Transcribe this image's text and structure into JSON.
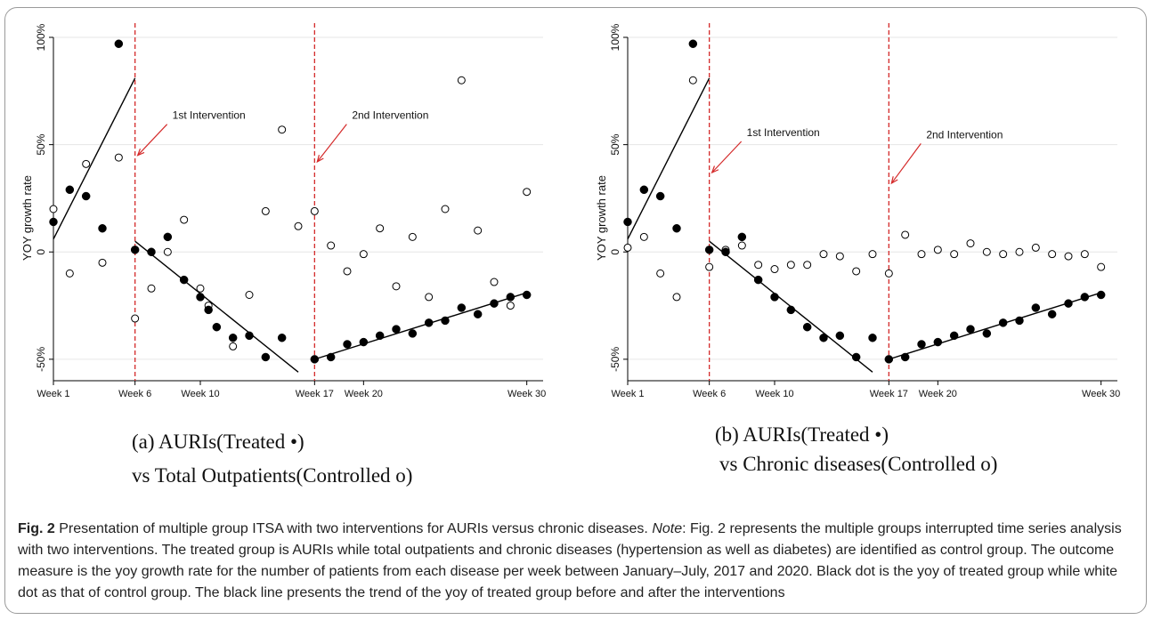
{
  "subtitles": [
    {
      "line1": "(a)   AURIs(Treated •)",
      "line2": "vs Total Outpatients(Controlled o)"
    },
    {
      "line1": "(b)   AURIs(Treated •)",
      "line2": "vs Chronic diseases(Controlled o)"
    }
  ],
  "caption": {
    "fig_label": "Fig. 2",
    "title": "Presentation of multiple group ITSA with two interventions for AURIs versus chronic diseases.",
    "note_label": "Note",
    "note_text": ": Fig. 2 represents the multiple groups interrupted time series analysis with two interventions. The treated group is AURIs while total outpatients and chronic diseases (hypertension as well as diabetes) are identified as control group. The outcome measure is the yoy growth rate for the number of patients from each disease per week between January–July, 2017 and 2020. Black dot is the yoy of treated group while white dot as that of control group. The black line presents the trend of the yoy of treated group before and after the interventions"
  },
  "colors": {
    "intervention": "#d42a2a",
    "marker": "#000000",
    "grid": "#e6e6e6"
  },
  "chart_data": [
    {
      "type": "scatter",
      "ylabel": "YOY growth rate",
      "xlim": [
        1,
        31
      ],
      "ylim": [
        -60,
        100
      ],
      "yticks": [
        {
          "v": 100,
          "label": "100%"
        },
        {
          "v": 50,
          "label": "50%"
        },
        {
          "v": 0,
          "label": "0"
        },
        {
          "v": -50,
          "label": "-50%"
        }
      ],
      "xticks": [
        {
          "v": 1,
          "label": "Week 1"
        },
        {
          "v": 6,
          "label": "Week 6"
        },
        {
          "v": 10,
          "label": "Week 10"
        },
        {
          "v": 17,
          "label": "Week 17"
        },
        {
          "v": 20,
          "label": "Week 20"
        },
        {
          "v": 30,
          "label": "Week 30"
        }
      ],
      "interventions": [
        {
          "week": 6,
          "label": "1st Intervention",
          "label_y": 62,
          "arrow_y": 45
        },
        {
          "week": 17,
          "label": "2nd Intervention",
          "label_y": 62,
          "arrow_y": 42
        }
      ],
      "treated": [
        [
          1,
          14
        ],
        [
          2,
          29
        ],
        [
          3,
          26
        ],
        [
          4,
          11
        ],
        [
          5,
          97
        ],
        [
          6,
          1
        ],
        [
          7,
          0
        ],
        [
          8,
          7
        ],
        [
          9,
          -13
        ],
        [
          10,
          -21
        ],
        [
          10.5,
          -27
        ],
        [
          11,
          -35
        ],
        [
          12,
          -40
        ],
        [
          13,
          -39
        ],
        [
          14,
          -49
        ],
        [
          15,
          -40
        ],
        [
          17,
          -50
        ],
        [
          18,
          -49
        ],
        [
          19,
          -43
        ],
        [
          20,
          -42
        ],
        [
          21,
          -39
        ],
        [
          22,
          -36
        ],
        [
          23,
          -38
        ],
        [
          24,
          -33
        ],
        [
          25,
          -32
        ],
        [
          26,
          -26
        ],
        [
          27,
          -29
        ],
        [
          28,
          -24
        ],
        [
          29,
          -21
        ],
        [
          30,
          -20
        ]
      ],
      "control": [
        [
          1,
          20
        ],
        [
          2,
          -10
        ],
        [
          3,
          41
        ],
        [
          4,
          -5
        ],
        [
          5,
          44
        ],
        [
          6,
          -31
        ],
        [
          7,
          -17
        ],
        [
          8,
          0
        ],
        [
          9,
          15
        ],
        [
          10,
          -17
        ],
        [
          10.5,
          -25
        ],
        [
          12,
          -44
        ],
        [
          13,
          -20
        ],
        [
          14,
          19
        ],
        [
          15,
          57
        ],
        [
          16,
          12
        ],
        [
          17,
          19
        ],
        [
          18,
          3
        ],
        [
          19,
          -9
        ],
        [
          20,
          -1
        ],
        [
          21,
          11
        ],
        [
          22,
          -16
        ],
        [
          23,
          7
        ],
        [
          24,
          -21
        ],
        [
          25,
          20
        ],
        [
          26,
          80
        ],
        [
          27,
          10
        ],
        [
          28,
          -14
        ],
        [
          29,
          -25
        ],
        [
          30,
          28
        ]
      ],
      "trend_lines": [
        {
          "x": [
            1,
            6
          ],
          "y": [
            6,
            81
          ]
        },
        {
          "x": [
            6,
            16
          ],
          "y": [
            5,
            -56
          ]
        },
        {
          "x": [
            17,
            30
          ],
          "y": [
            -50,
            -19
          ]
        }
      ]
    },
    {
      "type": "scatter",
      "ylabel": "YOY growth rate",
      "xlim": [
        1,
        31
      ],
      "ylim": [
        -60,
        100
      ],
      "yticks": [
        {
          "v": 100,
          "label": "100%"
        },
        {
          "v": 50,
          "label": "50%"
        },
        {
          "v": 0,
          "label": "0"
        },
        {
          "v": -50,
          "label": "-50%"
        }
      ],
      "xticks": [
        {
          "v": 1,
          "label": "Week 1"
        },
        {
          "v": 6,
          "label": "Week 6"
        },
        {
          "v": 10,
          "label": "Week 10"
        },
        {
          "v": 17,
          "label": "Week 17"
        },
        {
          "v": 20,
          "label": "Week 20"
        },
        {
          "v": 30,
          "label": "Week 30"
        }
      ],
      "interventions": [
        {
          "week": 6,
          "label": "1st Intervention",
          "label_y": 54,
          "arrow_y": 37
        },
        {
          "week": 17,
          "label": "2nd Intervention",
          "label_y": 53,
          "arrow_y": 32
        }
      ],
      "treated": [
        [
          1,
          14
        ],
        [
          2,
          29
        ],
        [
          3,
          26
        ],
        [
          4,
          11
        ],
        [
          5,
          97
        ],
        [
          6,
          1
        ],
        [
          7,
          0
        ],
        [
          8,
          7
        ],
        [
          9,
          -13
        ],
        [
          10,
          -21
        ],
        [
          11,
          -27
        ],
        [
          12,
          -35
        ],
        [
          13,
          -40
        ],
        [
          14,
          -39
        ],
        [
          15,
          -49
        ],
        [
          16,
          -40
        ],
        [
          17,
          -50
        ],
        [
          18,
          -49
        ],
        [
          19,
          -43
        ],
        [
          20,
          -42
        ],
        [
          21,
          -39
        ],
        [
          22,
          -36
        ],
        [
          23,
          -38
        ],
        [
          24,
          -33
        ],
        [
          25,
          -32
        ],
        [
          26,
          -26
        ],
        [
          27,
          -29
        ],
        [
          28,
          -24
        ],
        [
          29,
          -21
        ],
        [
          30,
          -20
        ]
      ],
      "control": [
        [
          1,
          2
        ],
        [
          2,
          7
        ],
        [
          3,
          -10
        ],
        [
          4,
          -21
        ],
        [
          5,
          80
        ],
        [
          6,
          -7
        ],
        [
          7,
          1
        ],
        [
          8,
          3
        ],
        [
          9,
          -6
        ],
        [
          10,
          -8
        ],
        [
          11,
          -6
        ],
        [
          12,
          -6
        ],
        [
          13,
          -1
        ],
        [
          14,
          -2
        ],
        [
          15,
          -9
        ],
        [
          16,
          -1
        ],
        [
          17,
          -10
        ],
        [
          18,
          8
        ],
        [
          19,
          -1
        ],
        [
          20,
          1
        ],
        [
          21,
          -1
        ],
        [
          22,
          4
        ],
        [
          23,
          0
        ],
        [
          24,
          -1
        ],
        [
          25,
          0
        ],
        [
          26,
          2
        ],
        [
          27,
          -1
        ],
        [
          28,
          -2
        ],
        [
          29,
          -1
        ],
        [
          30,
          -7
        ]
      ],
      "trend_lines": [
        {
          "x": [
            1,
            6
          ],
          "y": [
            6,
            81
          ]
        },
        {
          "x": [
            6,
            16
          ],
          "y": [
            5,
            -56
          ]
        },
        {
          "x": [
            17,
            30
          ],
          "y": [
            -50,
            -19
          ]
        }
      ]
    }
  ]
}
